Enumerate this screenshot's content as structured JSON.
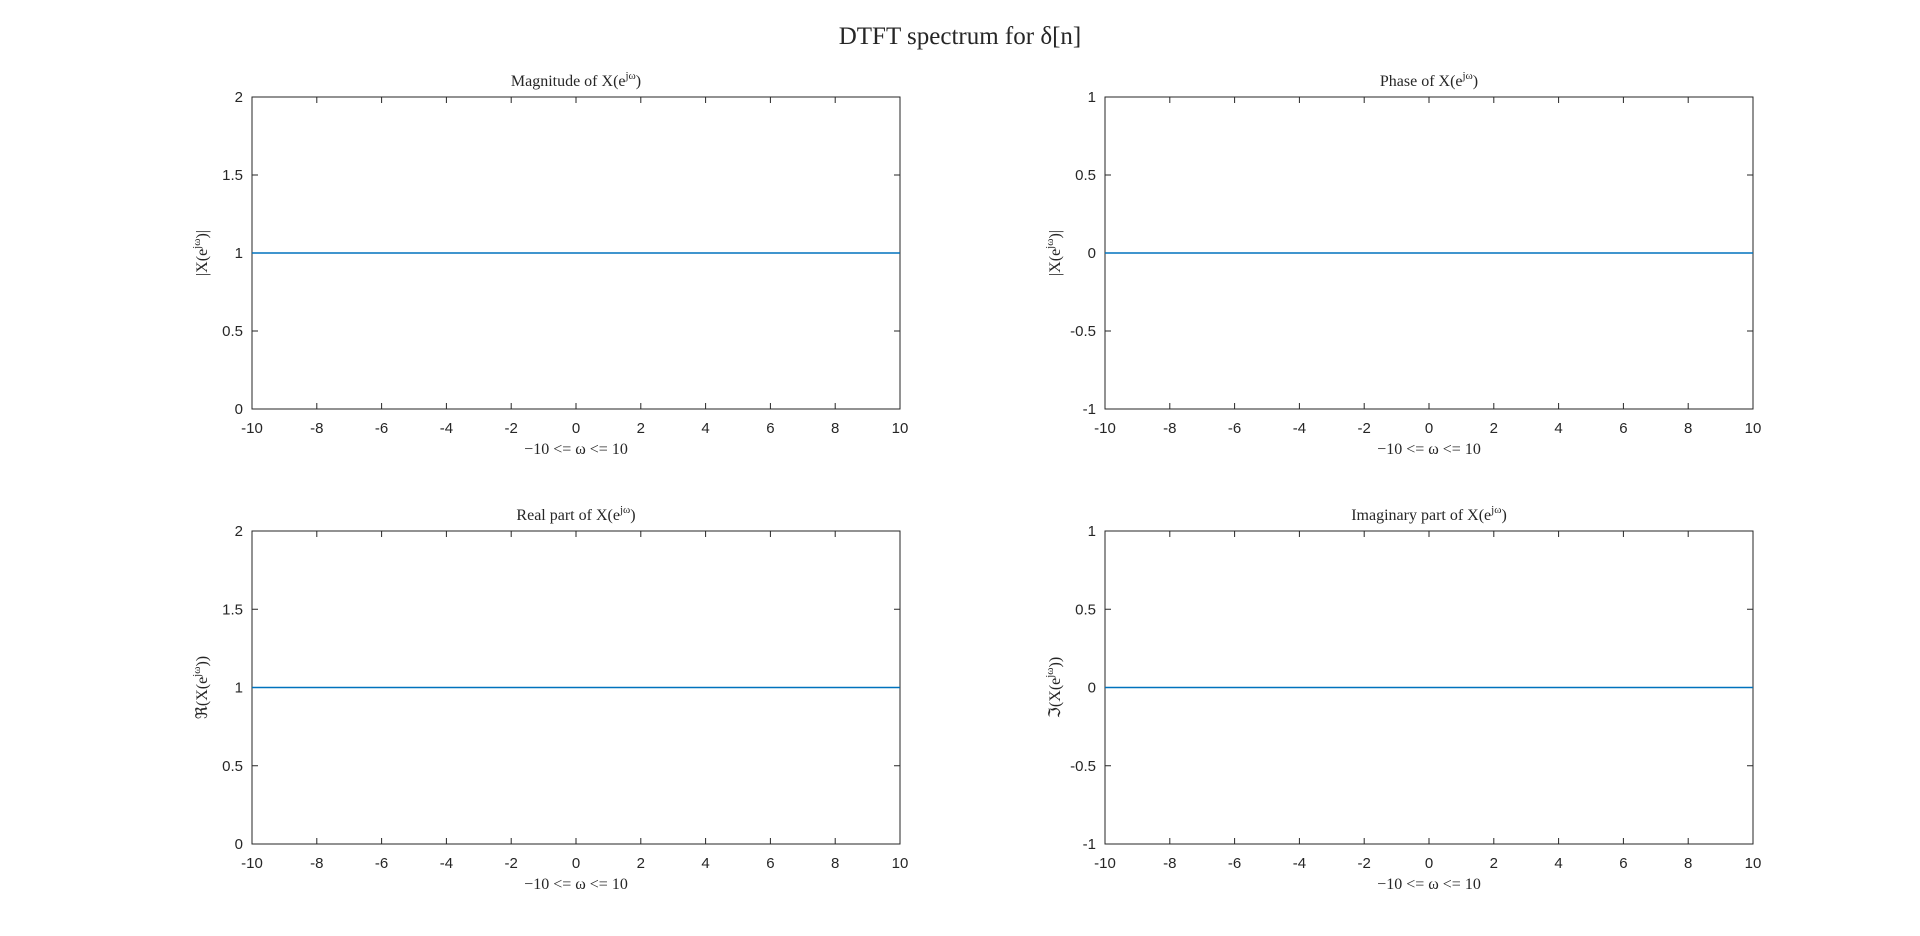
{
  "figure": {
    "suptitle": "DTFT spectrum for δ[n]"
  },
  "chart_data": [
    {
      "type": "line",
      "title": "Magnitude of X(e^{jω})",
      "xlabel": "−10 <= ω <= 10",
      "ylabel": "|X(e^{jω})|",
      "xlim": [
        -10,
        10
      ],
      "ylim": [
        0,
        2
      ],
      "xticks": [
        -10,
        -8,
        -6,
        -4,
        -2,
        0,
        2,
        4,
        6,
        8,
        10
      ],
      "yticks": [
        0,
        0.5,
        1,
        1.5,
        2
      ],
      "x": [
        -10,
        10
      ],
      "series": [
        {
          "values": [
            1,
            1
          ],
          "color": "#0072BD"
        }
      ],
      "grid": false
    },
    {
      "type": "line",
      "title": "Phase of X(e^{jω})",
      "xlabel": "−10 <= ω <= 10",
      "ylabel": "|X(e^{jω})|",
      "xlim": [
        -10,
        10
      ],
      "ylim": [
        -1,
        1
      ],
      "xticks": [
        -10,
        -8,
        -6,
        -4,
        -2,
        0,
        2,
        4,
        6,
        8,
        10
      ],
      "yticks": [
        -1,
        -0.5,
        0,
        0.5,
        1
      ],
      "x": [
        -10,
        10
      ],
      "series": [
        {
          "values": [
            0,
            0
          ],
          "color": "#0072BD"
        }
      ],
      "grid": false
    },
    {
      "type": "line",
      "title": "Real part of X(e^{jω})",
      "xlabel": "−10 <= ω <= 10",
      "ylabel": "ℜ(X(e^{jω}))",
      "xlim": [
        -10,
        10
      ],
      "ylim": [
        0,
        2
      ],
      "xticks": [
        -10,
        -8,
        -6,
        -4,
        -2,
        0,
        2,
        4,
        6,
        8,
        10
      ],
      "yticks": [
        0,
        0.5,
        1,
        1.5,
        2
      ],
      "x": [
        -10,
        10
      ],
      "series": [
        {
          "values": [
            1,
            1
          ],
          "color": "#0072BD"
        }
      ],
      "grid": false
    },
    {
      "type": "line",
      "title": "Imaginary part of X(e^{jω})",
      "xlabel": "−10 <= ω <= 10",
      "ylabel": "ℑ(X(e^{jω}))",
      "xlim": [
        -10,
        10
      ],
      "ylim": [
        -1,
        1
      ],
      "xticks": [
        -10,
        -8,
        -6,
        -4,
        -2,
        0,
        2,
        4,
        6,
        8,
        10
      ],
      "yticks": [
        -1,
        -0.5,
        0,
        0.5,
        1
      ],
      "x": [
        -10,
        10
      ],
      "series": [
        {
          "values": [
            0,
            0
          ],
          "color": "#0072BD"
        }
      ],
      "grid": false
    }
  ]
}
